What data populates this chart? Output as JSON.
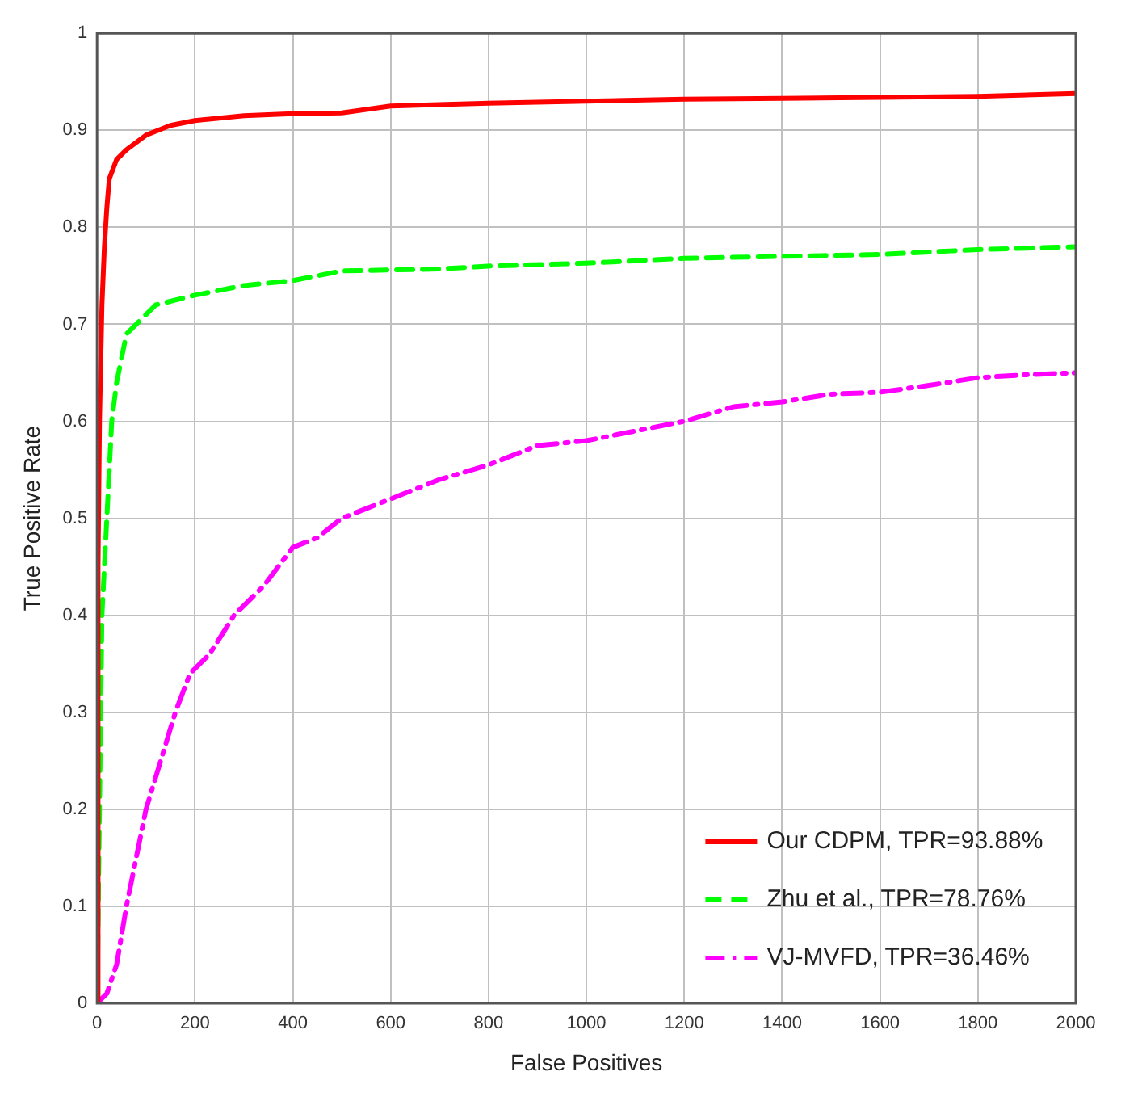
{
  "chart_data": {
    "type": "line",
    "xlabel": "False Positives",
    "ylabel": "True Positive Rate",
    "xlim": [
      0,
      2000
    ],
    "xticks": [
      0,
      200,
      400,
      600,
      800,
      1000,
      1200,
      1400,
      1600,
      1800,
      2000
    ],
    "ylim": [
      0,
      1
    ],
    "yticks": [
      0,
      0.1,
      0.2,
      0.3,
      0.4,
      0.5,
      0.6,
      0.7,
      0.8,
      0.9,
      1
    ],
    "grid": true,
    "legend": "bottom right",
    "marker": "none",
    "series": [
      {
        "name": "Our CDPM, TPR=93.88%",
        "color": "#ff0000",
        "line_style": "solid",
        "x": [
          0,
          2,
          5,
          10,
          15,
          20,
          25,
          40,
          60,
          100,
          150,
          200,
          300,
          400,
          500,
          600,
          800,
          1000,
          1200,
          1400,
          1600,
          1800,
          2000
        ],
        "values": [
          0,
          0.45,
          0.6,
          0.72,
          0.78,
          0.82,
          0.85,
          0.87,
          0.88,
          0.895,
          0.905,
          0.91,
          0.915,
          0.917,
          0.918,
          0.925,
          0.928,
          0.93,
          0.932,
          0.933,
          0.934,
          0.935,
          0.938
        ]
      },
      {
        "name": "Zhu et al., TPR=78.76%",
        "color": "#00ff00",
        "line_style": "dashed",
        "x": [
          0,
          5,
          10,
          20,
          30,
          40,
          60,
          80,
          120,
          200,
          300,
          400,
          500,
          700,
          800,
          1000,
          1200,
          1400,
          1600,
          1800,
          2000
        ],
        "values": [
          0,
          0.2,
          0.4,
          0.5,
          0.6,
          0.64,
          0.69,
          0.7,
          0.72,
          0.73,
          0.74,
          0.745,
          0.755,
          0.757,
          0.76,
          0.763,
          0.768,
          0.77,
          0.772,
          0.777,
          0.78
        ]
      },
      {
        "name": "VJ-MVFD, TPR=36.46%",
        "color": "#ff00ff",
        "line_style": "dashdot",
        "x": [
          0,
          20,
          40,
          60,
          80,
          100,
          130,
          160,
          190,
          230,
          280,
          340,
          400,
          450,
          500,
          550,
          600,
          700,
          800,
          900,
          1000,
          1100,
          1200,
          1300,
          1400,
          1500,
          1600,
          1700,
          1800,
          1900,
          2000
        ],
        "values": [
          0,
          0.01,
          0.04,
          0.1,
          0.15,
          0.2,
          0.25,
          0.3,
          0.34,
          0.36,
          0.4,
          0.43,
          0.47,
          0.48,
          0.5,
          0.51,
          0.52,
          0.54,
          0.555,
          0.575,
          0.58,
          0.59,
          0.6,
          0.615,
          0.62,
          0.628,
          0.63,
          0.637,
          0.645,
          0.648,
          0.65
        ]
      }
    ]
  }
}
